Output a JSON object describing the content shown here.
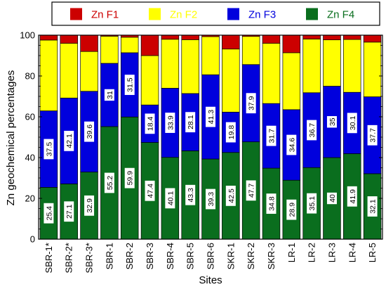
{
  "chart_data": {
    "type": "bar",
    "stacked": true,
    "xlabel": "Sites",
    "ylabel": "Zn geochemical percentages",
    "ylim": [
      0,
      100
    ],
    "yticks": [
      0,
      20,
      40,
      60,
      80,
      100
    ],
    "grid": false,
    "legend_position": "top",
    "categories": [
      "SBR-1*",
      "SBR-2*",
      "SBR-3*",
      "SBR-1",
      "SBR-2",
      "SBR-3",
      "SBR-4",
      "SBR-5",
      "SBR-6",
      "SKR-1",
      "SKR-2",
      "SKR-3",
      "LR-1",
      "LR-2",
      "LR-3",
      "LR-4",
      "LR-5"
    ],
    "series": [
      {
        "name": "Zn F4",
        "color": "#0a6e1e",
        "values": [
          25.4,
          27.1,
          32.9,
          55.2,
          59.9,
          47.4,
          40.1,
          43.3,
          39.3,
          42.5,
          47.7,
          34.8,
          28.9,
          35.1,
          40,
          41.9,
          32.1
        ],
        "labels": [
          "25.4",
          "27.1",
          "32.9",
          "55.2",
          "59.9",
          "47.4",
          "40.1",
          "43.3",
          "39.3",
          "42.5",
          "47.7",
          "34.8",
          "28.9",
          "35.1",
          "40",
          "41.9",
          "32.1"
        ]
      },
      {
        "name": "Zn F3",
        "color": "#0000dd",
        "values": [
          37.5,
          42.1,
          39.6,
          31,
          31.5,
          18.4,
          33.9,
          28.1,
          41.3,
          19.8,
          37.9,
          31.7,
          34.6,
          36.7,
          35,
          30.1,
          37.7
        ],
        "labels": [
          "37.5",
          "42.1",
          "39.6",
          "31",
          "31.5",
          "18.4",
          "33.9",
          "28.1",
          "41.3",
          "19.8",
          "37.9",
          "31.7",
          "34.6",
          "36.7",
          "35",
          "30.1",
          "37.7"
        ]
      },
      {
        "name": "Zn F2",
        "color": "#ffff00",
        "values": [
          34.7,
          26.8,
          19.5,
          13.3,
          7.6,
          24.2,
          24,
          26.4,
          18.7,
          30.9,
          13.8,
          29.5,
          27.9,
          26.3,
          22.7,
          25.9,
          26.8
        ]
      },
      {
        "name": "Zn F1",
        "color": "#cc0000",
        "values": [
          2.4,
          4,
          8,
          0.5,
          1,
          10,
          2,
          2.2,
          0.7,
          6.8,
          0.6,
          4,
          8.6,
          1.9,
          2.3,
          2.1,
          3.4
        ]
      }
    ],
    "legend_order": [
      "Zn F1",
      "Zn F2",
      "Zn F3",
      "Zn F4"
    ]
  }
}
